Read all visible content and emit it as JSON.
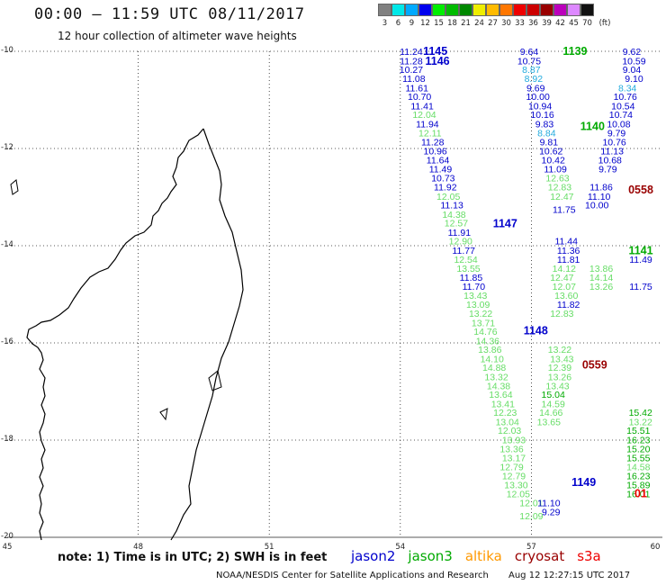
{
  "header": {
    "title": "00:00 – 11:59 UTC 08/11/2017",
    "subtitle": "12 hour collection of altimeter wave heights"
  },
  "legend": {
    "unit": "(ft)",
    "bins": [
      {
        "label": "3",
        "color": "#808080"
      },
      {
        "label": "6",
        "color": "#00e8e8"
      },
      {
        "label": "9",
        "color": "#00aaff"
      },
      {
        "label": "12",
        "color": "#0000ee"
      },
      {
        "label": "15",
        "color": "#00ee00"
      },
      {
        "label": "18",
        "color": "#00bb00"
      },
      {
        "label": "21",
        "color": "#008800"
      },
      {
        "label": "24",
        "color": "#eeee00"
      },
      {
        "label": "27",
        "color": "#ffbb00"
      },
      {
        "label": "30",
        "color": "#ff7700"
      },
      {
        "label": "33",
        "color": "#ee0000"
      },
      {
        "label": "36",
        "color": "#cc0000"
      },
      {
        "label": "39",
        "color": "#990000"
      },
      {
        "label": "42",
        "color": "#bb00bb"
      },
      {
        "label": "45",
        "color": "#dd88ff"
      },
      {
        "label": "70",
        "color": "#111111"
      }
    ]
  },
  "map": {
    "lat_labels": [
      "-10",
      "-12",
      "-14",
      "-16",
      "-18",
      "-20"
    ],
    "lon_labels": [
      "45",
      "48",
      "51",
      "54",
      "57",
      "60"
    ],
    "colors": {
      "jason2": "#0000cc",
      "jason3": "#00aa00",
      "jason3_light": "#66dd66",
      "altika": "#ff9900",
      "cryosat": "#990000",
      "s3a": "#ee0000",
      "cyan": "#22aadd"
    }
  },
  "observations": [
    {
      "v": "11.24",
      "c": "jason2",
      "lon": 54.25,
      "lat": -10.0
    },
    {
      "v": "11.28",
      "c": "jason2",
      "lon": 54.25,
      "lat": -10.19
    },
    {
      "v": "10.27",
      "c": "jason2",
      "lon": 54.25,
      "lat": -10.37
    },
    {
      "v": "11.08",
      "c": "jason2",
      "lon": 54.31,
      "lat": -10.56
    },
    {
      "v": "11.61",
      "c": "jason2",
      "lon": 54.38,
      "lat": -10.75
    },
    {
      "v": "10.70",
      "c": "jason2",
      "lon": 54.44,
      "lat": -10.93
    },
    {
      "v": "11.41",
      "c": "jason2",
      "lon": 54.5,
      "lat": -11.12
    },
    {
      "v": "12.04",
      "c": "jason3_light",
      "lon": 54.55,
      "lat": -11.3
    },
    {
      "v": "11.94",
      "c": "jason2",
      "lon": 54.62,
      "lat": -11.49
    },
    {
      "v": "12.11",
      "c": "jason3_light",
      "lon": 54.68,
      "lat": -11.68
    },
    {
      "v": "11.28",
      "c": "jason2",
      "lon": 54.74,
      "lat": -11.86
    },
    {
      "v": "10.96",
      "c": "jason2",
      "lon": 54.8,
      "lat": -12.05
    },
    {
      "v": "11.64",
      "c": "jason2",
      "lon": 54.86,
      "lat": -12.23
    },
    {
      "v": "11.49",
      "c": "jason2",
      "lon": 54.92,
      "lat": -12.42
    },
    {
      "v": "10.73",
      "c": "jason2",
      "lon": 54.98,
      "lat": -12.6
    },
    {
      "v": "11.92",
      "c": "jason2",
      "lon": 55.03,
      "lat": -12.79
    },
    {
      "v": "12.05",
      "c": "jason3_light",
      "lon": 55.1,
      "lat": -12.98
    },
    {
      "v": "11.13",
      "c": "jason2",
      "lon": 55.18,
      "lat": -13.16
    },
    {
      "v": "14.38",
      "c": "jason3_light",
      "lon": 55.23,
      "lat": -13.35
    },
    {
      "v": "12.57",
      "c": "jason3_light",
      "lon": 55.28,
      "lat": -13.53
    },
    {
      "v": "11.91",
      "c": "jason2",
      "lon": 55.35,
      "lat": -13.72
    },
    {
      "v": "12.90",
      "c": "jason3_light",
      "lon": 55.38,
      "lat": -13.9
    },
    {
      "v": "11.77",
      "c": "jason2",
      "lon": 55.45,
      "lat": -14.09
    },
    {
      "v": "12.54",
      "c": "jason3_light",
      "lon": 55.5,
      "lat": -14.28
    },
    {
      "v": "13.55",
      "c": "jason3_light",
      "lon": 55.56,
      "lat": -14.46
    },
    {
      "v": "11.85",
      "c": "jason2",
      "lon": 55.62,
      "lat": -14.65
    },
    {
      "v": "11.70",
      "c": "jason2",
      "lon": 55.68,
      "lat": -14.83
    },
    {
      "v": "13.43",
      "c": "jason3_light",
      "lon": 55.72,
      "lat": -15.02
    },
    {
      "v": "13.09",
      "c": "jason3_light",
      "lon": 55.78,
      "lat": -15.2
    },
    {
      "v": "13.22",
      "c": "jason3_light",
      "lon": 55.84,
      "lat": -15.39
    },
    {
      "v": "13.71",
      "c": "jason3_light",
      "lon": 55.9,
      "lat": -15.58
    },
    {
      "v": "14.76",
      "c": "jason3_light",
      "lon": 55.95,
      "lat": -15.76
    },
    {
      "v": "14.36",
      "c": "jason3_light",
      "lon": 56.0,
      "lat": -15.95
    },
    {
      "v": "13.86",
      "c": "jason3_light",
      "lon": 56.05,
      "lat": -16.13
    },
    {
      "v": "14.10",
      "c": "jason3_light",
      "lon": 56.1,
      "lat": -16.32
    },
    {
      "v": "14.88",
      "c": "jason3_light",
      "lon": 56.15,
      "lat": -16.5
    },
    {
      "v": "13.32",
      "c": "jason3_light",
      "lon": 56.2,
      "lat": -16.69
    },
    {
      "v": "14.38",
      "c": "jason3_light",
      "lon": 56.25,
      "lat": -16.88
    },
    {
      "v": "13.64",
      "c": "jason3_light",
      "lon": 56.3,
      "lat": -17.06
    },
    {
      "v": "13.41",
      "c": "jason3_light",
      "lon": 56.35,
      "lat": -17.25
    },
    {
      "v": "12.23",
      "c": "jason3_light",
      "lon": 56.4,
      "lat": -17.43
    },
    {
      "v": "13.04",
      "c": "jason3_light",
      "lon": 56.45,
      "lat": -17.62
    },
    {
      "v": "12.03",
      "c": "jason3_light",
      "lon": 56.5,
      "lat": -17.8
    },
    {
      "v": "13.93",
      "c": "jason3_light",
      "lon": 56.6,
      "lat": -17.99
    },
    {
      "v": "13.36",
      "c": "jason3_light",
      "lon": 56.55,
      "lat": -18.18
    },
    {
      "v": "13.17",
      "c": "jason3_light",
      "lon": 56.6,
      "lat": -18.36
    },
    {
      "v": "12.79",
      "c": "jason3_light",
      "lon": 56.55,
      "lat": -18.55
    },
    {
      "v": "12.79",
      "c": "jason3_light",
      "lon": 56.6,
      "lat": -18.73
    },
    {
      "v": "13.30",
      "c": "jason3_light",
      "lon": 56.65,
      "lat": -18.92
    },
    {
      "v": "12.05",
      "c": "jason3_light",
      "lon": 56.7,
      "lat": -19.1
    },
    {
      "v": "12.01",
      "c": "jason3_light",
      "lon": 57.0,
      "lat": -19.29
    },
    {
      "v": "12.09",
      "c": "jason3_light",
      "lon": 57.0,
      "lat": -19.56
    },
    {
      "v": "9.64",
      "c": "jason2",
      "lon": 56.95,
      "lat": -10.0
    },
    {
      "v": "10.75",
      "c": "jason2",
      "lon": 56.95,
      "lat": -10.19
    },
    {
      "v": "8.87",
      "c": "cyan",
      "lon": 57.0,
      "lat": -10.37
    },
    {
      "v": "8.92",
      "c": "cyan",
      "lon": 57.05,
      "lat": -10.56
    },
    {
      "v": "9.69",
      "c": "jason2",
      "lon": 57.1,
      "lat": -10.75
    },
    {
      "v": "10.00",
      "c": "jason2",
      "lon": 57.15,
      "lat": -10.93
    },
    {
      "v": "10.94",
      "c": "jason2",
      "lon": 57.2,
      "lat": -11.12
    },
    {
      "v": "10.16",
      "c": "jason2",
      "lon": 57.25,
      "lat": -11.3
    },
    {
      "v": "9.83",
      "c": "jason2",
      "lon": 57.3,
      "lat": -11.49
    },
    {
      "v": "8.84",
      "c": "cyan",
      "lon": 57.35,
      "lat": -11.68
    },
    {
      "v": "9.81",
      "c": "jason2",
      "lon": 57.4,
      "lat": -11.86
    },
    {
      "v": "10.62",
      "c": "jason2",
      "lon": 57.45,
      "lat": -12.05
    },
    {
      "v": "10.42",
      "c": "jason2",
      "lon": 57.5,
      "lat": -12.23
    },
    {
      "v": "11.09",
      "c": "jason2",
      "lon": 57.55,
      "lat": -12.42
    },
    {
      "v": "12.63",
      "c": "jason3_light",
      "lon": 57.6,
      "lat": -12.6
    },
    {
      "v": "12.83",
      "c": "jason3_light",
      "lon": 57.65,
      "lat": -12.79
    },
    {
      "v": "12.47",
      "c": "jason3_light",
      "lon": 57.7,
      "lat": -12.98
    },
    {
      "v": "11.75",
      "c": "jason2",
      "lon": 57.75,
      "lat": -13.25
    },
    {
      "v": "11.44",
      "c": "jason2",
      "lon": 57.8,
      "lat": -13.9
    },
    {
      "v": "11.36",
      "c": "jason2",
      "lon": 57.85,
      "lat": -14.09
    },
    {
      "v": "11.81",
      "c": "jason2",
      "lon": 57.85,
      "lat": -14.28
    },
    {
      "v": "14.12",
      "c": "jason3_light",
      "lon": 57.75,
      "lat": -14.46
    },
    {
      "v": "12.47",
      "c": "jason3_light",
      "lon": 57.7,
      "lat": -14.65
    },
    {
      "v": "12.07",
      "c": "jason3_light",
      "lon": 57.75,
      "lat": -14.83
    },
    {
      "v": "13.60",
      "c": "jason3_light",
      "lon": 57.8,
      "lat": -15.02
    },
    {
      "v": "11.82",
      "c": "jason2",
      "lon": 57.85,
      "lat": -15.2
    },
    {
      "v": "12.83",
      "c": "jason3_light",
      "lon": 57.7,
      "lat": -15.39
    },
    {
      "v": "13.22",
      "c": "jason3_light",
      "lon": 57.65,
      "lat": -16.13
    },
    {
      "v": "13.43",
      "c": "jason3_light",
      "lon": 57.7,
      "lat": -16.32
    },
    {
      "v": "12.39",
      "c": "jason3_light",
      "lon": 57.65,
      "lat": -16.5
    },
    {
      "v": "13.26",
      "c": "jason3_light",
      "lon": 57.65,
      "lat": -16.69
    },
    {
      "v": "13.43",
      "c": "jason3_light",
      "lon": 57.6,
      "lat": -16.88
    },
    {
      "v": "15.04",
      "c": "jason3",
      "lon": 57.5,
      "lat": -17.06
    },
    {
      "v": "14.59",
      "c": "jason3_light",
      "lon": 57.5,
      "lat": -17.25
    },
    {
      "v": "14.66",
      "c": "jason3_light",
      "lon": 57.45,
      "lat": -17.43
    },
    {
      "v": "13.65",
      "c": "jason3_light",
      "lon": 57.4,
      "lat": -17.62
    },
    {
      "v": "11.10",
      "c": "jason2",
      "lon": 57.4,
      "lat": -19.29
    },
    {
      "v": "9.29",
      "c": "jason2",
      "lon": 57.45,
      "lat": -19.47
    },
    {
      "v": "9.62",
      "c": "jason2",
      "lon": 59.3,
      "lat": -10.0
    },
    {
      "v": "10.59",
      "c": "jason2",
      "lon": 59.35,
      "lat": -10.19
    },
    {
      "v": "9.04",
      "c": "jason2",
      "lon": 59.3,
      "lat": -10.37
    },
    {
      "v": "9.10",
      "c": "jason2",
      "lon": 59.35,
      "lat": -10.56
    },
    {
      "v": "8.34",
      "c": "cyan",
      "lon": 59.2,
      "lat": -10.75
    },
    {
      "v": "10.76",
      "c": "jason2",
      "lon": 59.15,
      "lat": -10.93
    },
    {
      "v": "10.54",
      "c": "jason2",
      "lon": 59.1,
      "lat": -11.12
    },
    {
      "v": "10.74",
      "c": "jason2",
      "lon": 59.05,
      "lat": -11.3
    },
    {
      "v": "10.08",
      "c": "jason2",
      "lon": 59.0,
      "lat": -11.49
    },
    {
      "v": "9.79",
      "c": "jason2",
      "lon": 58.95,
      "lat": -11.68
    },
    {
      "v": "10.76",
      "c": "jason2",
      "lon": 58.9,
      "lat": -11.86
    },
    {
      "v": "11.13",
      "c": "jason2",
      "lon": 58.85,
      "lat": -12.05
    },
    {
      "v": "10.68",
      "c": "jason2",
      "lon": 58.8,
      "lat": -12.23
    },
    {
      "v": "9.79",
      "c": "jason2",
      "lon": 58.75,
      "lat": -12.42
    },
    {
      "v": "11.86",
      "c": "jason2",
      "lon": 58.6,
      "lat": -12.79
    },
    {
      "v": "11.10",
      "c": "jason2",
      "lon": 58.55,
      "lat": -12.98
    },
    {
      "v": "10.00",
      "c": "jason2",
      "lon": 58.5,
      "lat": -13.16
    },
    {
      "v": "13.86",
      "c": "jason3_light",
      "lon": 58.6,
      "lat": -14.46
    },
    {
      "v": "14.14",
      "c": "jason3_light",
      "lon": 58.6,
      "lat": -14.65
    },
    {
      "v": "13.26",
      "c": "jason3_light",
      "lon": 58.6,
      "lat": -14.83
    },
    {
      "v": "11.75",
      "c": "jason2",
      "lon": 59.7,
      "lat": -14.83
    },
    {
      "v": "11.49",
      "c": "jason2",
      "lon": 59.65,
      "lat": -14.28
    },
    {
      "v": "15.42",
      "c": "jason3",
      "lon": 59.5,
      "lat": -17.43
    },
    {
      "v": "13.22",
      "c": "jason3_light",
      "lon": 59.5,
      "lat": -17.62
    },
    {
      "v": "15.51",
      "c": "jason3",
      "lon": 59.45,
      "lat": -17.8
    },
    {
      "v": "16.23",
      "c": "jason3",
      "lon": 59.45,
      "lat": -17.99
    },
    {
      "v": "15.20",
      "c": "jason3",
      "lon": 59.45,
      "lat": -18.18
    },
    {
      "v": "15.55",
      "c": "jason3",
      "lon": 59.45,
      "lat": -18.36
    },
    {
      "v": "14.58",
      "c": "jason3_light",
      "lon": 59.45,
      "lat": -18.55
    },
    {
      "v": "16.23",
      "c": "jason3",
      "lon": 59.45,
      "lat": -18.73
    },
    {
      "v": "15.89",
      "c": "jason3",
      "lon": 59.45,
      "lat": -18.92
    },
    {
      "v": "16.01",
      "c": "jason3",
      "lon": 59.45,
      "lat": -19.1
    }
  ],
  "passes": [
    {
      "v": "1145",
      "c": "jason2",
      "lon": 54.8,
      "lat": -10.0
    },
    {
      "v": "1146",
      "c": "jason2",
      "lon": 54.85,
      "lat": -10.2
    },
    {
      "v": "1147",
      "c": "jason2",
      "lon": 56.4,
      "lat": -13.55
    },
    {
      "v": "1148",
      "c": "jason2",
      "lon": 57.1,
      "lat": -15.75
    },
    {
      "v": "1149",
      "c": "jason2",
      "lon": 58.2,
      "lat": -18.87
    },
    {
      "v": "1139",
      "c": "jason3",
      "lon": 58.0,
      "lat": -10.0
    },
    {
      "v": "1140",
      "c": "jason3",
      "lon": 58.4,
      "lat": -11.55
    },
    {
      "v": "1141",
      "c": "jason3",
      "lon": 59.6,
      "lat": -14.1
    },
    {
      "v": "0558",
      "c": "cryosat",
      "lon": 59.55,
      "lat": -12.85
    },
    {
      "v": "0559",
      "c": "cryosat",
      "lon": 58.45,
      "lat": -16.45
    },
    {
      "v": "01",
      "c": "s3a",
      "lon": 59.85,
      "lat": -19.1
    }
  ],
  "footer": {
    "note": "note:  1) Time is in UTC;  2) SWH is in feet",
    "satellites": [
      {
        "name": "jason2",
        "color": "#0000cc"
      },
      {
        "name": "jason3",
        "color": "#00aa00"
      },
      {
        "name": "altika",
        "color": "#ff9900"
      },
      {
        "name": "cryosat",
        "color": "#990000"
      },
      {
        "name": "s3a",
        "color": "#ee0000"
      }
    ],
    "credit": "NOAA/NESDIS Center for Satellite Applications and Research",
    "stamp": "Aug 12 12:27:15 UTC 2017"
  }
}
